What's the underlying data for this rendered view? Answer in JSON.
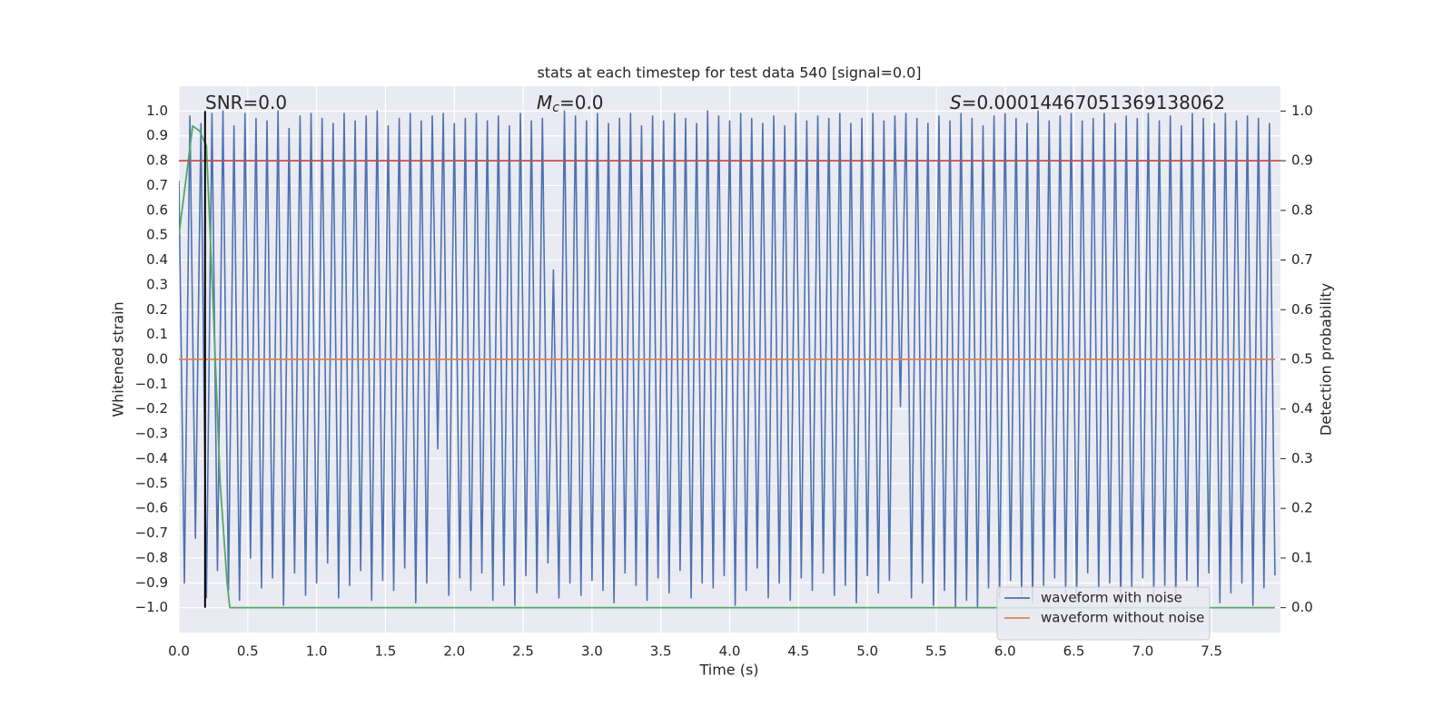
{
  "chart_data": {
    "type": "line",
    "title": "stats at each timestep for test data 540 [signal=0.0]",
    "xlabel": "Time (s)",
    "ylabel": "Whitened strain",
    "y2label": "Detection probability",
    "xlim": [
      0,
      8
    ],
    "ylim": [
      -1.1,
      1.1
    ],
    "y2lim": [
      -0.05,
      1.05
    ],
    "grid": true,
    "legend": "lower right",
    "xticks": [
      {
        "value": 0,
        "label": "0.0"
      },
      0.5,
      {
        "value": 1,
        "label": "1.0"
      },
      1.5,
      {
        "value": 2,
        "label": "2.0"
      },
      2.5,
      {
        "value": 3,
        "label": "3.0"
      },
      3.5,
      {
        "value": 4,
        "label": "4.0"
      },
      4.5,
      {
        "value": 5,
        "label": "5.0"
      },
      5.5,
      {
        "value": 6,
        "label": "6.0"
      },
      6.5,
      {
        "value": 7,
        "label": "7.0"
      },
      7.5
    ],
    "yticks": [
      {
        "value": -1,
        "label": "−1.0"
      },
      {
        "value": -0.9,
        "label": "−0.9"
      },
      {
        "value": -0.8,
        "label": "−0.8"
      },
      {
        "value": -0.7,
        "label": "−0.7"
      },
      {
        "value": -0.6,
        "label": "−0.6"
      },
      {
        "value": -0.5,
        "label": "−0.5"
      },
      {
        "value": -0.4,
        "label": "−0.4"
      },
      {
        "value": -0.3,
        "label": "−0.3"
      },
      {
        "value": -0.2,
        "label": "−0.2"
      },
      {
        "value": -0.1,
        "label": "−0.1"
      },
      {
        "value": 0,
        "label": "0.0"
      },
      0.1,
      0.2,
      0.3,
      0.4,
      0.5,
      0.6,
      0.7,
      0.8,
      0.9,
      {
        "value": 1,
        "label": "1.0"
      }
    ],
    "y2ticks": [
      {
        "value": 0,
        "label": "0.0"
      },
      0.1,
      0.2,
      0.3,
      0.4,
      0.5,
      0.6,
      0.7,
      0.8,
      0.9,
      {
        "value": 1,
        "label": "1.0"
      }
    ],
    "series": [
      {
        "name": "waveform with noise",
        "color": "#4c72b0",
        "x": [
          0,
          0.04,
          0.08,
          0.12,
          0.16,
          0.2,
          0.24,
          0.28,
          0.32,
          0.36,
          0.4,
          0.44,
          0.48,
          0.52,
          0.56,
          0.6,
          0.64,
          0.68,
          0.72,
          0.76,
          0.8,
          0.84,
          0.88,
          0.92,
          0.96,
          1,
          1.04,
          1.08,
          1.12,
          1.16,
          1.2,
          1.24,
          1.28,
          1.32,
          1.36,
          1.4,
          1.44,
          1.48,
          1.52,
          1.56,
          1.6,
          1.64,
          1.68,
          1.72,
          1.76,
          1.8,
          1.84,
          1.88,
          1.92,
          1.96,
          2,
          2.04,
          2.08,
          2.12,
          2.16,
          2.2,
          2.24,
          2.28,
          2.32,
          2.36,
          2.4,
          2.44,
          2.48,
          2.52,
          2.56,
          2.6,
          2.64,
          2.68,
          2.72,
          2.76,
          2.8,
          2.84,
          2.88,
          2.92,
          2.96,
          3,
          3.04,
          3.08,
          3.12,
          3.16,
          3.2,
          3.24,
          3.28,
          3.32,
          3.36,
          3.4,
          3.44,
          3.48,
          3.52,
          3.56,
          3.6,
          3.64,
          3.68,
          3.72,
          3.76,
          3.8,
          3.84,
          3.88,
          3.92,
          3.96,
          4,
          4.04,
          4.08,
          4.12,
          4.16,
          4.2,
          4.24,
          4.28,
          4.32,
          4.36,
          4.4,
          4.44,
          4.48,
          4.52,
          4.56,
          4.6,
          4.64,
          4.68,
          4.72,
          4.76,
          4.8,
          4.84,
          4.88,
          4.92,
          4.96,
          5,
          5.04,
          5.08,
          5.12,
          5.16,
          5.2,
          5.24,
          5.28,
          5.32,
          5.36,
          5.4,
          5.44,
          5.48,
          5.52,
          5.56,
          5.6,
          5.64,
          5.68,
          5.72,
          5.76,
          5.8,
          5.84,
          5.88,
          5.92,
          5.96,
          6,
          6.04,
          6.08,
          6.12,
          6.16,
          6.2,
          6.24,
          6.28,
          6.32,
          6.36,
          6.4,
          6.44,
          6.48,
          6.52,
          6.56,
          6.6,
          6.64,
          6.68,
          6.72,
          6.76,
          6.8,
          6.84,
          6.88,
          6.92,
          6.96,
          7,
          7.04,
          7.08,
          7.12,
          7.16,
          7.2,
          7.24,
          7.28,
          7.32,
          7.36,
          7.4,
          7.44,
          7.48,
          7.52,
          7.56,
          7.6,
          7.64,
          7.68,
          7.72,
          7.76,
          7.8,
          7.84,
          7.88,
          7.92,
          7.96
        ],
        "values": [
          0.72,
          -0.9,
          0.98,
          -0.72,
          0.95,
          -0.96,
          0.99,
          -0.85,
          1.0,
          -0.93,
          0.94,
          -0.97,
          0.99,
          -0.8,
          0.97,
          -0.92,
          0.96,
          -0.88,
          1.0,
          -0.99,
          0.93,
          -0.86,
          0.98,
          -0.95,
          0.99,
          -0.9,
          0.97,
          -0.82,
          0.95,
          -0.96,
          0.99,
          -0.91,
          0.96,
          -0.85,
          0.98,
          -0.97,
          1.0,
          -0.89,
          0.94,
          -0.93,
          0.97,
          -0.84,
          0.99,
          -0.98,
          0.96,
          -0.9,
          0.98,
          -0.36,
          0.99,
          -0.95,
          0.95,
          -0.88,
          0.97,
          -0.93,
          0.99,
          -0.86,
          0.96,
          -0.97,
          0.98,
          -0.91,
          0.94,
          -0.99,
          0.99,
          -0.87,
          0.96,
          -0.94,
          0.97,
          -0.82,
          0.36,
          -0.96,
          1.0,
          -0.9,
          0.98,
          -0.95,
          0.96,
          -0.89,
          0.99,
          -0.93,
          0.95,
          -0.98,
          0.97,
          -0.86,
          0.99,
          -0.91,
          0.94,
          -0.97,
          0.98,
          -0.88,
          0.96,
          -0.94,
          0.99,
          -0.85,
          0.97,
          -0.96,
          0.95,
          -0.9,
          1.0,
          -0.92,
          0.98,
          -0.87,
          0.96,
          -0.99,
          0.99,
          -0.93,
          0.97,
          -0.84,
          0.95,
          -0.96,
          0.98,
          -0.9,
          0.94,
          -0.97,
          0.99,
          -0.88,
          0.96,
          -0.93,
          0.98,
          -0.86,
          0.97,
          -0.95,
          0.99,
          -0.91,
          0.95,
          -0.98,
          0.97,
          -0.87,
          0.99,
          -0.94,
          0.96,
          -0.89,
          0.98,
          -0.19,
          0.99,
          -0.96,
          0.97,
          -0.9,
          0.95,
          -0.99,
          0.98,
          -0.93,
          0.96,
          -1.0,
          0.99,
          -0.97,
          0.97,
          -1.0,
          0.94,
          -0.92,
          0.98,
          -0.96,
          0.99,
          -0.89,
          0.97,
          -0.95,
          0.95,
          -0.98,
          1.0,
          -0.91,
          0.96,
          -0.88,
          0.98,
          -0.94,
          0.99,
          -0.97,
          0.96,
          -0.86,
          0.97,
          -0.93,
          0.99,
          -0.9,
          0.95,
          -0.99,
          0.98,
          -0.92,
          0.97,
          -0.88,
          0.99,
          -0.95,
          0.96,
          -0.91,
          0.98,
          -0.97,
          0.94,
          -0.89,
          0.99,
          -0.93,
          0.97,
          -0.86,
          0.95,
          -0.98,
          0.99,
          -0.94,
          0.96,
          -0.9,
          0.98,
          -0.99,
          0.97,
          -0.92,
          0.95,
          -0.87
        ]
      },
      {
        "name": "waveform without noise",
        "color": "#dd8452",
        "x": [
          0,
          7.96
        ],
        "values": [
          0,
          0
        ]
      },
      {
        "color": "#55a868",
        "axis": "y2",
        "x": [
          0,
          0.1,
          0.15,
          0.2,
          0.25,
          0.3,
          0.35,
          0.37,
          7.96
        ],
        "values": [
          0.75,
          0.97,
          0.96,
          0.93,
          0.6,
          0.25,
          0.05,
          0,
          0
        ]
      }
    ],
    "hlines": [
      {
        "value": 0.9,
        "axis": "y2",
        "color": "#c44e52"
      }
    ],
    "vlines": [
      {
        "value": 0.19,
        "ymin": -1,
        "ymax": 1,
        "color": "#000000"
      }
    ],
    "annotations": [
      {
        "text": "SNR=0.0"
      },
      {
        "symbol": "M",
        "subscript": "c",
        "text": "=0.0"
      },
      {
        "symbol": "S",
        "text": "=0.00014467051369138062"
      }
    ]
  }
}
